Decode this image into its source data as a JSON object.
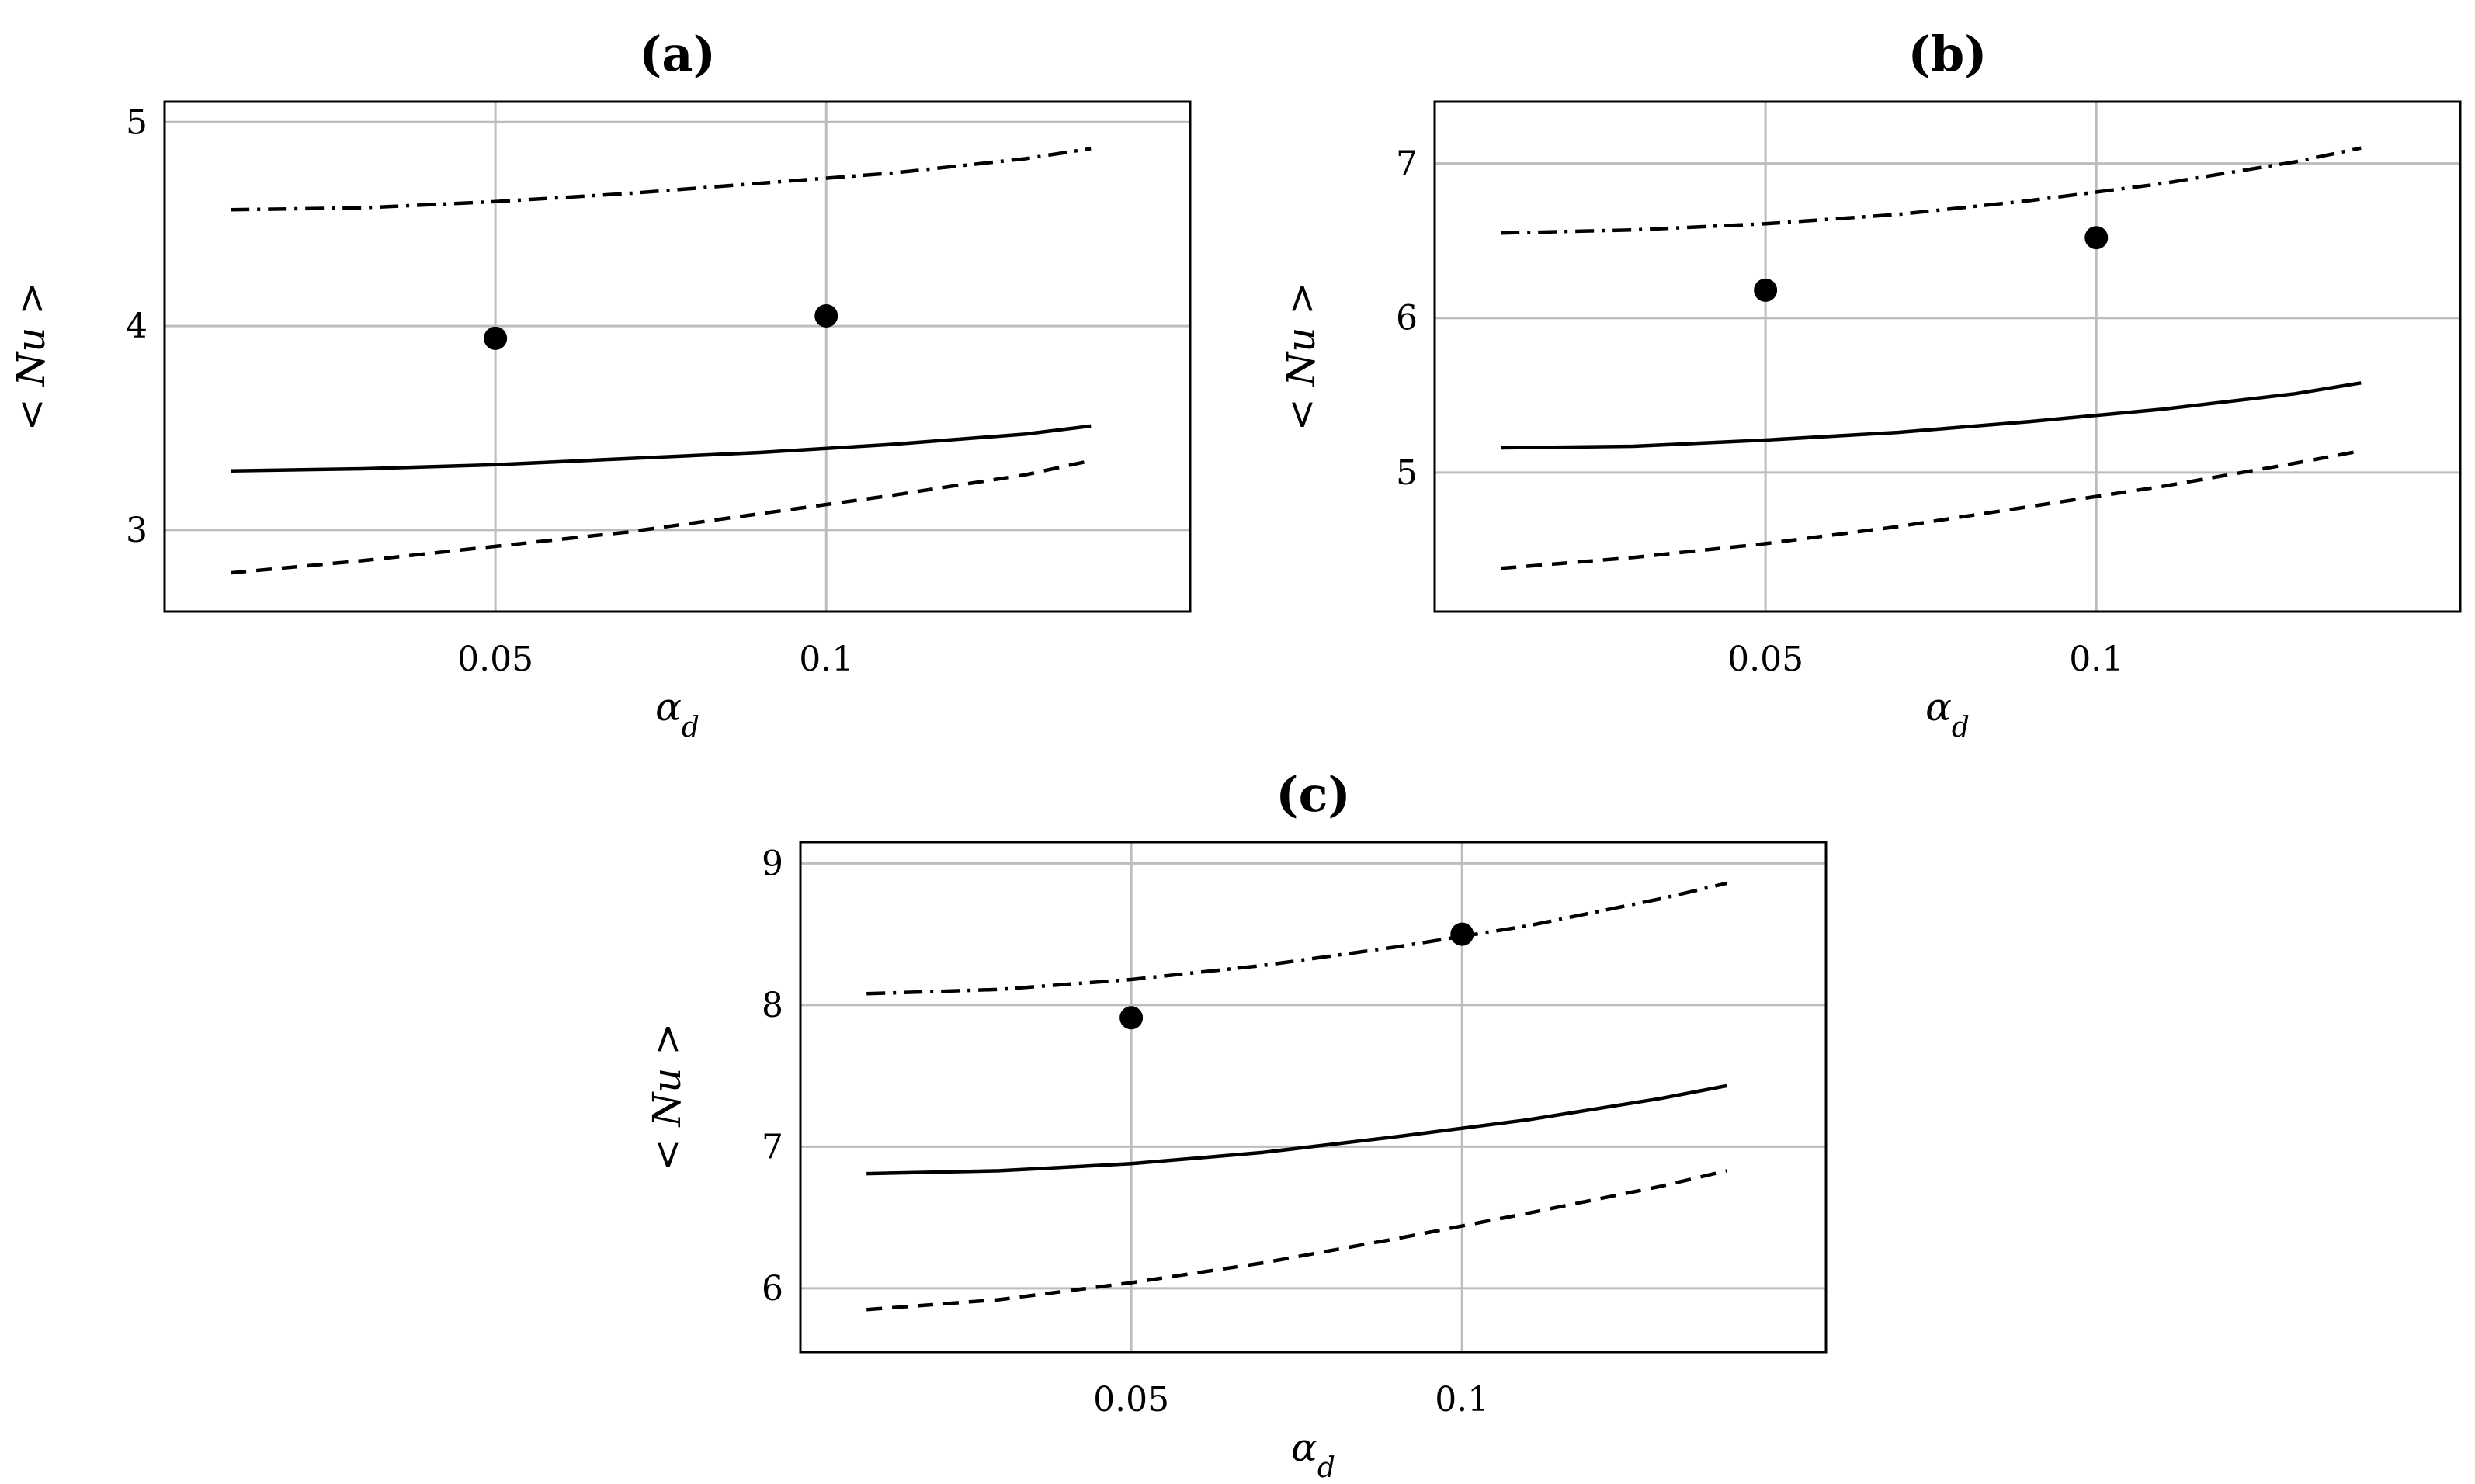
{
  "chart_data": [
    {
      "type": "line",
      "title": "(a)",
      "xlabel": "α_d",
      "ylabel": "< Nu >",
      "xlim": [
        0,
        0.155
      ],
      "ylim": [
        2.6,
        5.1
      ],
      "x_ticks": [
        0.05,
        0.1
      ],
      "x_tick_labels": [
        "0.05",
        "0.1"
      ],
      "y_ticks": [
        3,
        4,
        5
      ],
      "y_tick_labels": [
        "3",
        "4",
        "5"
      ],
      "grid": true,
      "series": [
        {
          "name": "dash-dot",
          "style": "dashdot",
          "x": [
            0.01,
            0.03,
            0.05,
            0.07,
            0.09,
            0.11,
            0.13,
            0.14
          ],
          "y": [
            4.57,
            4.58,
            4.61,
            4.65,
            4.7,
            4.75,
            4.82,
            4.87
          ]
        },
        {
          "name": "solid",
          "style": "solid",
          "x": [
            0.01,
            0.03,
            0.05,
            0.07,
            0.09,
            0.11,
            0.13,
            0.14
          ],
          "y": [
            3.29,
            3.3,
            3.32,
            3.35,
            3.38,
            3.42,
            3.47,
            3.51
          ]
        },
        {
          "name": "dashed",
          "style": "dashed",
          "x": [
            0.01,
            0.03,
            0.05,
            0.07,
            0.09,
            0.11,
            0.13,
            0.14
          ],
          "y": [
            2.79,
            2.85,
            2.92,
            2.99,
            3.08,
            3.17,
            3.27,
            3.34
          ]
        },
        {
          "name": "markers",
          "style": "scatter",
          "x": [
            0.05,
            0.1
          ],
          "y": [
            3.94,
            4.05
          ]
        }
      ]
    },
    {
      "type": "line",
      "title": "(b)",
      "xlabel": "α_d",
      "ylabel": "< Nu >",
      "xlim": [
        0,
        0.155
      ],
      "ylim": [
        4.1,
        7.4
      ],
      "x_ticks": [
        0.05,
        0.1
      ],
      "x_tick_labels": [
        "0.05",
        "0.1"
      ],
      "y_ticks": [
        5,
        6,
        7
      ],
      "y_tick_labels": [
        "5",
        "6",
        "7"
      ],
      "grid": true,
      "series": [
        {
          "name": "dash-dot",
          "style": "dashdot",
          "x": [
            0.01,
            0.03,
            0.05,
            0.07,
            0.09,
            0.11,
            0.13,
            0.14
          ],
          "y": [
            6.55,
            6.57,
            6.61,
            6.67,
            6.76,
            6.87,
            7.01,
            7.1
          ]
        },
        {
          "name": "solid",
          "style": "solid",
          "x": [
            0.01,
            0.03,
            0.05,
            0.07,
            0.09,
            0.11,
            0.13,
            0.14
          ],
          "y": [
            5.16,
            5.17,
            5.21,
            5.26,
            5.33,
            5.41,
            5.51,
            5.58
          ]
        },
        {
          "name": "dashed",
          "style": "dashed",
          "x": [
            0.01,
            0.03,
            0.05,
            0.07,
            0.09,
            0.11,
            0.13,
            0.14
          ],
          "y": [
            4.38,
            4.45,
            4.54,
            4.65,
            4.78,
            4.91,
            5.06,
            5.14
          ]
        },
        {
          "name": "markers",
          "style": "scatter",
          "x": [
            0.05,
            0.1
          ],
          "y": [
            6.18,
            6.52
          ]
        }
      ]
    },
    {
      "type": "line",
      "title": "(c)",
      "xlabel": "α_d",
      "ylabel": "< Nu >",
      "xlim": [
        0,
        0.155
      ],
      "ylim": [
        5.55,
        9.15
      ],
      "x_ticks": [
        0.05,
        0.1
      ],
      "x_tick_labels": [
        "0.05",
        "0.1"
      ],
      "y_ticks": [
        6,
        7,
        8,
        9
      ],
      "y_tick_labels": [
        "6",
        "7",
        "8",
        "9"
      ],
      "grid": true,
      "series": [
        {
          "name": "dash-dot",
          "style": "dashdot",
          "x": [
            0.01,
            0.03,
            0.05,
            0.07,
            0.09,
            0.11,
            0.13,
            0.14
          ],
          "y": [
            8.08,
            8.11,
            8.18,
            8.28,
            8.41,
            8.56,
            8.75,
            8.86
          ]
        },
        {
          "name": "solid",
          "style": "solid",
          "x": [
            0.01,
            0.03,
            0.05,
            0.07,
            0.09,
            0.11,
            0.13,
            0.14
          ],
          "y": [
            6.81,
            6.83,
            6.88,
            6.96,
            7.07,
            7.19,
            7.34,
            7.43
          ]
        },
        {
          "name": "dashed",
          "style": "dashed",
          "x": [
            0.01,
            0.03,
            0.05,
            0.07,
            0.09,
            0.11,
            0.13,
            0.14
          ],
          "y": [
            5.85,
            5.92,
            6.04,
            6.18,
            6.35,
            6.53,
            6.72,
            6.83
          ]
        },
        {
          "name": "markers",
          "style": "scatter",
          "x": [
            0.05,
            0.1
          ],
          "y": [
            7.91,
            8.5
          ]
        }
      ]
    }
  ]
}
